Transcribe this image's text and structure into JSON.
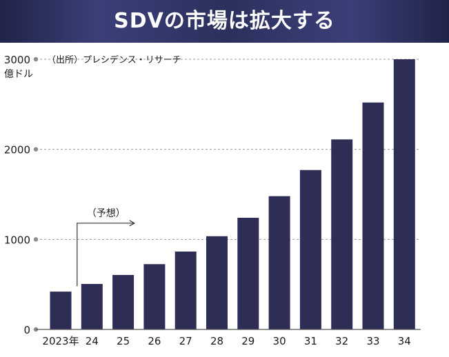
{
  "title": "SDVの市場は拡大する",
  "chart_data": {
    "type": "bar",
    "title": "SDVの市場は拡大する",
    "unit_label": "億ドル",
    "source_note": "（出所）プレシデンス・リサーチ",
    "forecast_label": "（予想）",
    "categories": [
      "2023年",
      "24",
      "25",
      "26",
      "27",
      "28",
      "29",
      "30",
      "31",
      "32",
      "33",
      "34"
    ],
    "values": [
      420,
      505,
      605,
      725,
      865,
      1035,
      1240,
      1480,
      1770,
      2110,
      2520,
      3000
    ],
    "y_ticks": [
      "0",
      "1000",
      "2000",
      "3000"
    ],
    "ylim": [
      0,
      3000
    ],
    "grid": true,
    "bar_color": "#2e2d56"
  }
}
